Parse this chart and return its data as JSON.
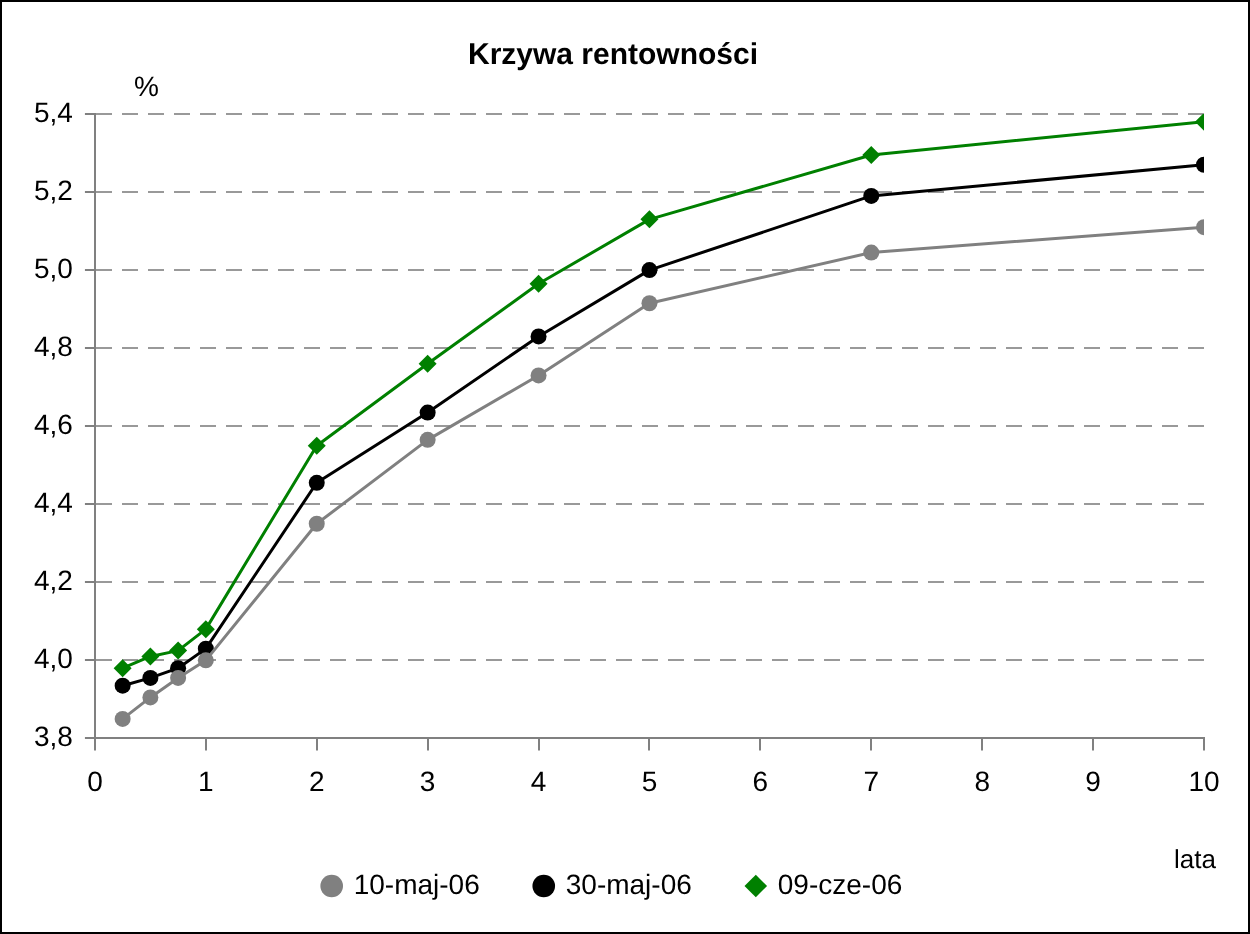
{
  "chart_data": {
    "type": "line",
    "title": "Krzywa rentowności",
    "xlabel": "lata",
    "ylabel": "%",
    "x": [
      0.25,
      0.5,
      0.75,
      1,
      2,
      3,
      4,
      5,
      7,
      10
    ],
    "series": [
      {
        "name": "10-maj-06",
        "color": "#808080",
        "marker": "circle",
        "values": [
          3.85,
          3.905,
          3.955,
          4.0,
          4.35,
          4.565,
          4.73,
          4.915,
          5.045,
          5.11
        ]
      },
      {
        "name": "30-maj-06",
        "color": "#000000",
        "marker": "circle",
        "values": [
          3.935,
          3.955,
          3.98,
          4.03,
          4.455,
          4.635,
          4.83,
          5.0,
          5.19,
          5.27
        ]
      },
      {
        "name": "09-cze-06",
        "color": "#008000",
        "marker": "diamond",
        "values": [
          3.98,
          4.01,
          4.025,
          4.08,
          4.55,
          4.76,
          4.965,
          5.13,
          5.295,
          5.38
        ]
      }
    ],
    "xlim": [
      0,
      10
    ],
    "xticks": [
      0,
      1,
      2,
      3,
      4,
      5,
      6,
      7,
      8,
      9,
      10
    ],
    "ylim": [
      3.8,
      5.4
    ],
    "yticks": [
      {
        "value": 3.8,
        "label": "3,8"
      },
      {
        "value": 4.0,
        "label": "4,0"
      },
      {
        "value": 4.2,
        "label": "4,2"
      },
      {
        "value": 4.4,
        "label": "4,4"
      },
      {
        "value": 4.6,
        "label": "4,6"
      },
      {
        "value": 4.8,
        "label": "4,8"
      },
      {
        "value": 5.0,
        "label": "5,0"
      },
      {
        "value": 5.2,
        "label": "5,2"
      },
      {
        "value": 5.4,
        "label": "5,4"
      }
    ],
    "grid": "y",
    "legend": "bottom",
    "line_style": "solid"
  }
}
